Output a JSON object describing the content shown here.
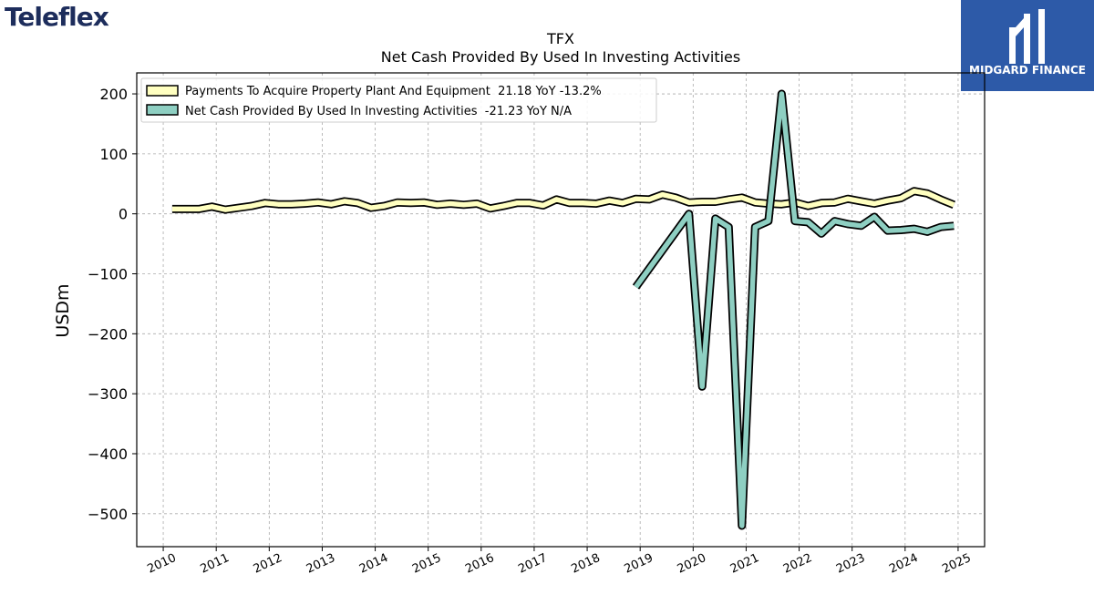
{
  "logos": {
    "left": "Teleflex",
    "right": "MIDGARD FINANCE"
  },
  "chart_data": {
    "type": "line",
    "title": "TFX",
    "subtitle": "Net Cash Provided By Used In Investing Activities",
    "xlabel": "",
    "ylabel": "USDm",
    "xlim": [
      2009.5,
      2025.5
    ],
    "ylim": [
      -555,
      235
    ],
    "grid": true,
    "legend_position": "top-left",
    "x_ticks": [
      "2010",
      "2011",
      "2012",
      "2013",
      "2014",
      "2015",
      "2016",
      "2017",
      "2018",
      "2019",
      "2020",
      "2021",
      "2022",
      "2023",
      "2024",
      "2025"
    ],
    "y_ticks": [
      200,
      100,
      0,
      -100,
      -200,
      -300,
      -400,
      -500
    ],
    "y_tick_labels": [
      "200",
      "100",
      "0",
      "−100",
      "−200",
      "−300",
      "−400",
      "−500"
    ],
    "series": [
      {
        "name": "Payments To Acquire Property Plant And Equipment  21.18 YoY -13.2%",
        "color": "#ffffc0",
        "x": [
          2010.17,
          2010.42,
          2010.67,
          2010.92,
          2011.17,
          2011.42,
          2011.67,
          2011.92,
          2012.17,
          2012.42,
          2012.67,
          2012.92,
          2013.17,
          2013.42,
          2013.67,
          2013.92,
          2014.17,
          2014.42,
          2014.67,
          2014.92,
          2015.17,
          2015.42,
          2015.67,
          2015.92,
          2016.17,
          2016.42,
          2016.67,
          2016.92,
          2017.17,
          2017.42,
          2017.67,
          2017.92,
          2018.17,
          2018.42,
          2018.67,
          2018.92,
          2019.17,
          2019.42,
          2019.67,
          2019.92,
          2020.17,
          2020.42,
          2020.67,
          2020.92,
          2021.17,
          2021.42,
          2021.67,
          2021.92,
          2022.17,
          2022.42,
          2022.67,
          2022.92,
          2023.17,
          2023.42,
          2023.67,
          2023.92,
          2024.17,
          2024.42,
          2024.67,
          2024.92
        ],
        "values": [
          8,
          8,
          8,
          12,
          7,
          10,
          13,
          18,
          16,
          16,
          17,
          19,
          16,
          21,
          18,
          10,
          13,
          19,
          18,
          19,
          15,
          17,
          15,
          17,
          9,
          13,
          18,
          18,
          14,
          24,
          18,
          18,
          17,
          22,
          18,
          25,
          24,
          32,
          27,
          19,
          20,
          20,
          24,
          27,
          19,
          17,
          16,
          19,
          13,
          18,
          19,
          25,
          21,
          17,
          22,
          26,
          38,
          34,
          24,
          15
        ]
      },
      {
        "name": "Net Cash Provided By Used In Investing Activities  -21.23 YoY N/A",
        "color": "#8ecfc2",
        "x": [
          2018.92,
          2019.92,
          2020.17,
          2020.42,
          2020.67,
          2020.92,
          2021.17,
          2021.42,
          2021.67,
          2021.92,
          2022.17,
          2022.42,
          2022.67,
          2022.92,
          2023.17,
          2023.42,
          2023.67,
          2023.92,
          2024.17,
          2024.42,
          2024.67,
          2024.92
        ],
        "values": [
          -122,
          0,
          -288,
          -8,
          -22,
          -520,
          -22,
          -12,
          200,
          -12,
          -14,
          -33,
          -12,
          -17,
          -20,
          -5,
          -28,
          -27,
          -25,
          -30,
          -22,
          -20
        ]
      }
    ]
  }
}
